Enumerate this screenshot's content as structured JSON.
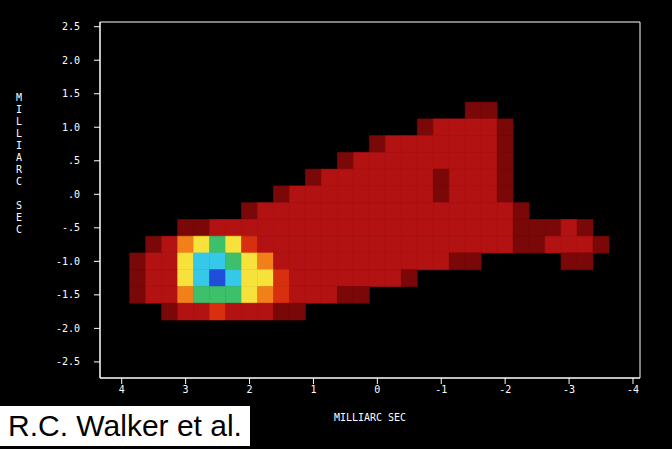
{
  "chart_data": {
    "type": "heatmap",
    "x_label": "MILLIARC SEC",
    "y_label": "MILLIARC SEC",
    "annotations": [
      "R.C. Walker et al."
    ],
    "xlim": [
      4.34,
      -4.11
    ],
    "ylim": [
      -2.74,
      2.57
    ],
    "xticks": [
      4,
      3,
      2,
      1,
      0,
      -1,
      -2,
      -3,
      -4
    ],
    "yticks": [
      2.5,
      {
        "value": 2,
        "label": "2.0"
      },
      1.5,
      {
        "value": 1,
        "label": "1.0"
      },
      {
        "value": 0.5,
        "label": ".5"
      },
      {
        "value": 0,
        "label": ".0"
      },
      {
        "value": -0.5,
        "label": "-.5"
      },
      {
        "value": -1,
        "label": "-1.0"
      },
      -1.5,
      {
        "value": -2,
        "label": "-2.0"
      },
      -2.5
    ],
    "clim": [
      0,
      8
    ],
    "x": [
      3.75,
      3.5,
      3.25,
      3,
      2.75,
      2.5,
      2.25,
      2,
      1.75,
      1.5,
      1.25,
      1,
      0.75,
      0.5,
      0.25,
      0,
      -0.25,
      -0.5,
      -0.75,
      -1,
      -1.25,
      -1.5,
      -1.75,
      -2,
      -2.25,
      -2.5,
      -2.75,
      -3,
      -3.25,
      -3.5
    ],
    "y": [
      1.25,
      1,
      0.75,
      0.5,
      0.25,
      0,
      -0.25,
      -0.5,
      -0.75,
      -1,
      -1.25,
      -1.5,
      -1.75
    ],
    "cells": [
      [
        0,
        0,
        0,
        0,
        0,
        0,
        0,
        0,
        0,
        0,
        0,
        0,
        0,
        0,
        0,
        0,
        0,
        0,
        0,
        0,
        0,
        1,
        1,
        0,
        0,
        0,
        0,
        0,
        0,
        0
      ],
      [
        0,
        0,
        0,
        0,
        0,
        0,
        0,
        0,
        0,
        0,
        0,
        0,
        0,
        0,
        0,
        0,
        0,
        0,
        1,
        2,
        2,
        2,
        2,
        1,
        0,
        0,
        0,
        0,
        0,
        0
      ],
      [
        0,
        0,
        0,
        0,
        0,
        0,
        0,
        0,
        0,
        0,
        0,
        0,
        0,
        0,
        0,
        1,
        2,
        2,
        2,
        2,
        2,
        2,
        2,
        1,
        0,
        0,
        0,
        0,
        0,
        0
      ],
      [
        0,
        0,
        0,
        0,
        0,
        0,
        0,
        0,
        0,
        0,
        0,
        0,
        0,
        1,
        2,
        2,
        2,
        2,
        2,
        2,
        2,
        2,
        2,
        1,
        0,
        0,
        0,
        0,
        0,
        0
      ],
      [
        0,
        0,
        0,
        0,
        0,
        0,
        0,
        0,
        0,
        0,
        0,
        1,
        2,
        2,
        2,
        2,
        2,
        2,
        2,
        1,
        2,
        2,
        2,
        1,
        0,
        0,
        0,
        0,
        0,
        0
      ],
      [
        0,
        0,
        0,
        0,
        0,
        0,
        0,
        0,
        0,
        1,
        2,
        2,
        2,
        2,
        2,
        2,
        2,
        2,
        2,
        1,
        2,
        2,
        2,
        1,
        0,
        0,
        0,
        0,
        0,
        0
      ],
      [
        0,
        0,
        0,
        0,
        0,
        0,
        0,
        1,
        2,
        2,
        2,
        2,
        2,
        2,
        2,
        2,
        2,
        2,
        2,
        2,
        2,
        2,
        2,
        2,
        1,
        0,
        0,
        0,
        0,
        0
      ],
      [
        0,
        0,
        0,
        1,
        1,
        2,
        2,
        2,
        2,
        2,
        2,
        2,
        2,
        2,
        2,
        2,
        2,
        2,
        2,
        2,
        2,
        2,
        2,
        2,
        1,
        1,
        1,
        2,
        1,
        0
      ],
      [
        0,
        1,
        2,
        4,
        5,
        6,
        5,
        3,
        2,
        2,
        2,
        2,
        2,
        2,
        2,
        2,
        2,
        2,
        2,
        2,
        2,
        2,
        2,
        2,
        1,
        1,
        2,
        2,
        2,
        1
      ],
      [
        1,
        2,
        2,
        5,
        7,
        7,
        6,
        5,
        4,
        2,
        2,
        2,
        2,
        2,
        2,
        2,
        2,
        2,
        2,
        2,
        1,
        1,
        0,
        0,
        0,
        0,
        0,
        1,
        1,
        0
      ],
      [
        1,
        2,
        2,
        5,
        7,
        8,
        7,
        5,
        5,
        3,
        2,
        2,
        2,
        2,
        2,
        2,
        2,
        1,
        0,
        0,
        0,
        0,
        0,
        0,
        0,
        0,
        0,
        0,
        0,
        0
      ],
      [
        1,
        2,
        2,
        4,
        6,
        6,
        6,
        5,
        4,
        3,
        2,
        2,
        2,
        1,
        1,
        0,
        0,
        0,
        0,
        0,
        0,
        0,
        0,
        0,
        0,
        0,
        0,
        0,
        0,
        0
      ],
      [
        0,
        0,
        1,
        2,
        2,
        3,
        2,
        2,
        2,
        1,
        1,
        0,
        0,
        0,
        0,
        0,
        0,
        0,
        0,
        0,
        0,
        0,
        0,
        0,
        0,
        0,
        0,
        0,
        0,
        0
      ]
    ]
  }
}
